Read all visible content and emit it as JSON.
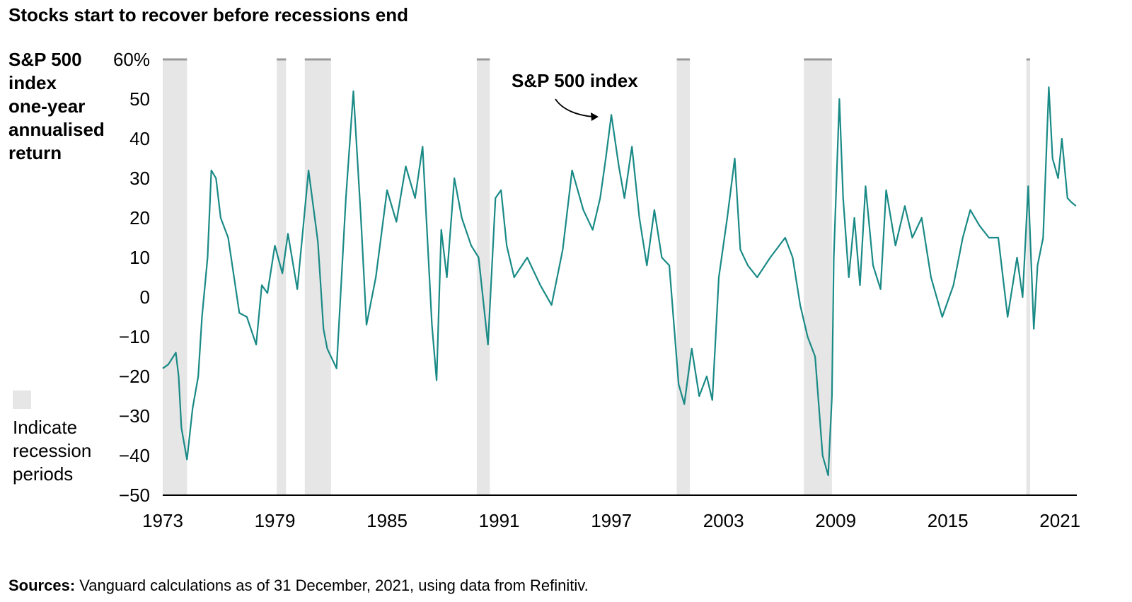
{
  "title": "Stocks start to recover before recessions end",
  "y_axis_title_lines": [
    "S&P 500",
    "index",
    "one-year",
    "annualised",
    "return"
  ],
  "legend": {
    "label_lines": [
      "Indicate",
      "recession",
      "periods"
    ]
  },
  "annotation": "S&P 500 index",
  "sources": {
    "label": "Sources:",
    "text": " Vanguard calculations as of 31 December, 2021, using data from Refinitiv."
  },
  "colors": {
    "line": "#1a8a86",
    "recession": "#e6e6e6",
    "axis": "#000000"
  },
  "chart_data": {
    "type": "line",
    "title": "Stocks start to recover before recessions end",
    "ylabel": "S&P 500 index one-year annualised return",
    "xlim": [
      1973.0,
      2021.9
    ],
    "ylim": [
      -50,
      60
    ],
    "y_ticks": [
      -50,
      -40,
      -30,
      -20,
      -10,
      0,
      10,
      20,
      30,
      40,
      50,
      60
    ],
    "y_tick_labels": [
      "−50",
      "−40",
      "−30",
      "−20",
      "−10",
      "0",
      "10",
      "20",
      "30",
      "40",
      "50",
      "60%"
    ],
    "x_ticks": [
      1973,
      1979,
      1985,
      1991,
      1997,
      2003,
      2009,
      2015,
      2021
    ],
    "x_tick_labels": [
      "1973",
      "1979",
      "1985",
      "1991",
      "1997",
      "2003",
      "2009",
      "2015",
      "2021"
    ],
    "grid": false,
    "recessions": [
      [
        1973.0,
        1974.3
      ],
      [
        1979.1,
        1979.6
      ],
      [
        1980.6,
        1982.0
      ],
      [
        1989.8,
        1990.5
      ],
      [
        2000.5,
        2001.2
      ],
      [
        2007.3,
        2008.8
      ],
      [
        2019.2,
        2019.4
      ]
    ],
    "series": [
      {
        "name": "S&P 500 index",
        "x": [
          1973.0,
          1973.3,
          1973.7,
          1973.85,
          1974.0,
          1974.3,
          1974.6,
          1974.9,
          1975.1,
          1975.4,
          1975.6,
          1975.85,
          1976.1,
          1976.5,
          1977.1,
          1977.5,
          1978.0,
          1978.3,
          1978.6,
          1979.0,
          1979.4,
          1979.7,
          1980.2,
          1980.5,
          1980.8,
          1981.3,
          1981.6,
          1981.8,
          1982.3,
          1982.8,
          1983.2,
          1983.6,
          1983.9,
          1984.4,
          1985.0,
          1985.5,
          1986.0,
          1986.5,
          1986.9,
          1987.4,
          1987.65,
          1987.9,
          1988.2,
          1988.6,
          1989.0,
          1989.5,
          1989.9,
          1990.4,
          1990.8,
          1991.1,
          1991.4,
          1991.8,
          1992.5,
          1993.2,
          1993.8,
          1994.4,
          1994.9,
          1995.5,
          1996.0,
          1996.4,
          1996.7,
          1997.0,
          1997.4,
          1997.7,
          1998.1,
          1998.5,
          1998.9,
          1999.3,
          1999.7,
          2000.1,
          2000.6,
          2000.9,
          2001.3,
          2001.7,
          2002.1,
          2002.4,
          2002.75,
          2003.2,
          2003.6,
          2003.9,
          2004.3,
          2004.8,
          2005.5,
          2006.3,
          2006.7,
          2007.1,
          2007.5,
          2007.9,
          2008.3,
          2008.6,
          2008.8,
          2008.9,
          2009.2,
          2009.4,
          2009.7,
          2010.0,
          2010.3,
          2010.6,
          2011.0,
          2011.4,
          2011.7,
          2012.2,
          2012.7,
          2013.1,
          2013.6,
          2014.1,
          2014.7,
          2015.3,
          2015.8,
          2016.2,
          2016.7,
          2017.2,
          2017.7,
          2018.2,
          2018.7,
          2019.0,
          2019.3,
          2019.6,
          2019.8,
          2020.1,
          2020.4,
          2020.6,
          2020.9,
          2021.1,
          2021.4,
          2021.6,
          2021.85
        ],
        "y": [
          -18,
          -17,
          -14,
          -20,
          -33,
          -41,
          -28,
          -20,
          -5,
          10,
          32,
          30,
          20,
          15,
          -4,
          -5,
          -12,
          3,
          1,
          13,
          6,
          16,
          2,
          17,
          32,
          14,
          -8,
          -13,
          -18,
          25,
          52,
          20,
          -7,
          5,
          27,
          19,
          33,
          25,
          38,
          -7,
          -21,
          17,
          5,
          30,
          20,
          13,
          10,
          -12,
          25,
          27,
          13,
          5,
          10,
          3,
          -2,
          12,
          32,
          22,
          17,
          25,
          35,
          46,
          33,
          25,
          38,
          20,
          8,
          22,
          10,
          8,
          -22,
          -27,
          -13,
          -25,
          -20,
          -26,
          5,
          20,
          35,
          12,
          8,
          5,
          10,
          15,
          10,
          -2,
          -10,
          -15,
          -40,
          -45,
          -25,
          10,
          50,
          25,
          5,
          20,
          3,
          28,
          8,
          2,
          27,
          13,
          23,
          15,
          20,
          5,
          -5,
          3,
          15,
          22,
          18,
          15,
          15,
          -5,
          10,
          0,
          28,
          -8,
          8,
          15,
          53,
          35,
          30,
          40,
          25,
          24,
          23
        ]
      }
    ]
  }
}
